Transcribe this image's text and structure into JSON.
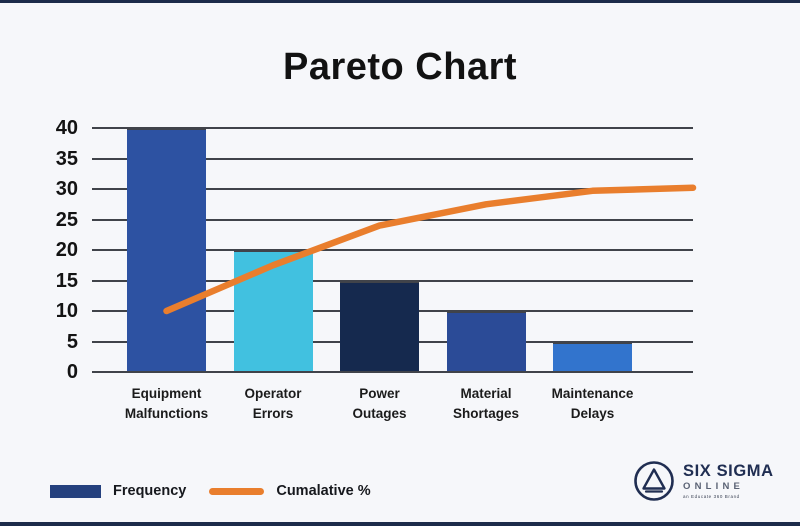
{
  "page": {
    "background": "#f6f7fa",
    "edge_border_color": "#1c2b4a"
  },
  "title": "Pareto Chart",
  "chart_data": {
    "type": "bar",
    "subtype": "pareto (bars + cumulative line)",
    "title": "Pareto Chart",
    "categories": [
      "Equipment Malfunctions",
      "Operator Errors",
      "Power Outages",
      "Material Shortages",
      "Maintenance Delays"
    ],
    "series": [
      {
        "name": "Frequency",
        "type": "bar",
        "values": [
          40,
          20,
          15,
          10,
          5
        ],
        "bar_colors": [
          "#2d52a2",
          "#41c1e0",
          "#15294e",
          "#2b4b97",
          "#3274cd"
        ]
      },
      {
        "name": "Cumalative %",
        "type": "line",
        "values_at_bars": [
          10,
          17.5,
          24,
          27.5,
          29.7
        ],
        "end_value_at_right_edge": 30.2,
        "color": "#e97e2d"
      }
    ],
    "y_ticks": [
      0,
      5,
      10,
      15,
      20,
      25,
      30,
      35,
      40
    ],
    "ylim": [
      0,
      40
    ],
    "xlabel": "",
    "ylabel": "",
    "grid": true,
    "gridline_color": "#40434a",
    "legend_position": "bottom-left"
  },
  "legend": {
    "frequency_label": "Frequency",
    "cumulative_label": "Cumalative %",
    "swatch_color": "#25417e",
    "line_color": "#e97e2d"
  },
  "logo": {
    "line1": "SIX SIGMA",
    "line2": "ONLINE",
    "tagline": "an Educate 360 Brand",
    "color": "#202e52"
  }
}
